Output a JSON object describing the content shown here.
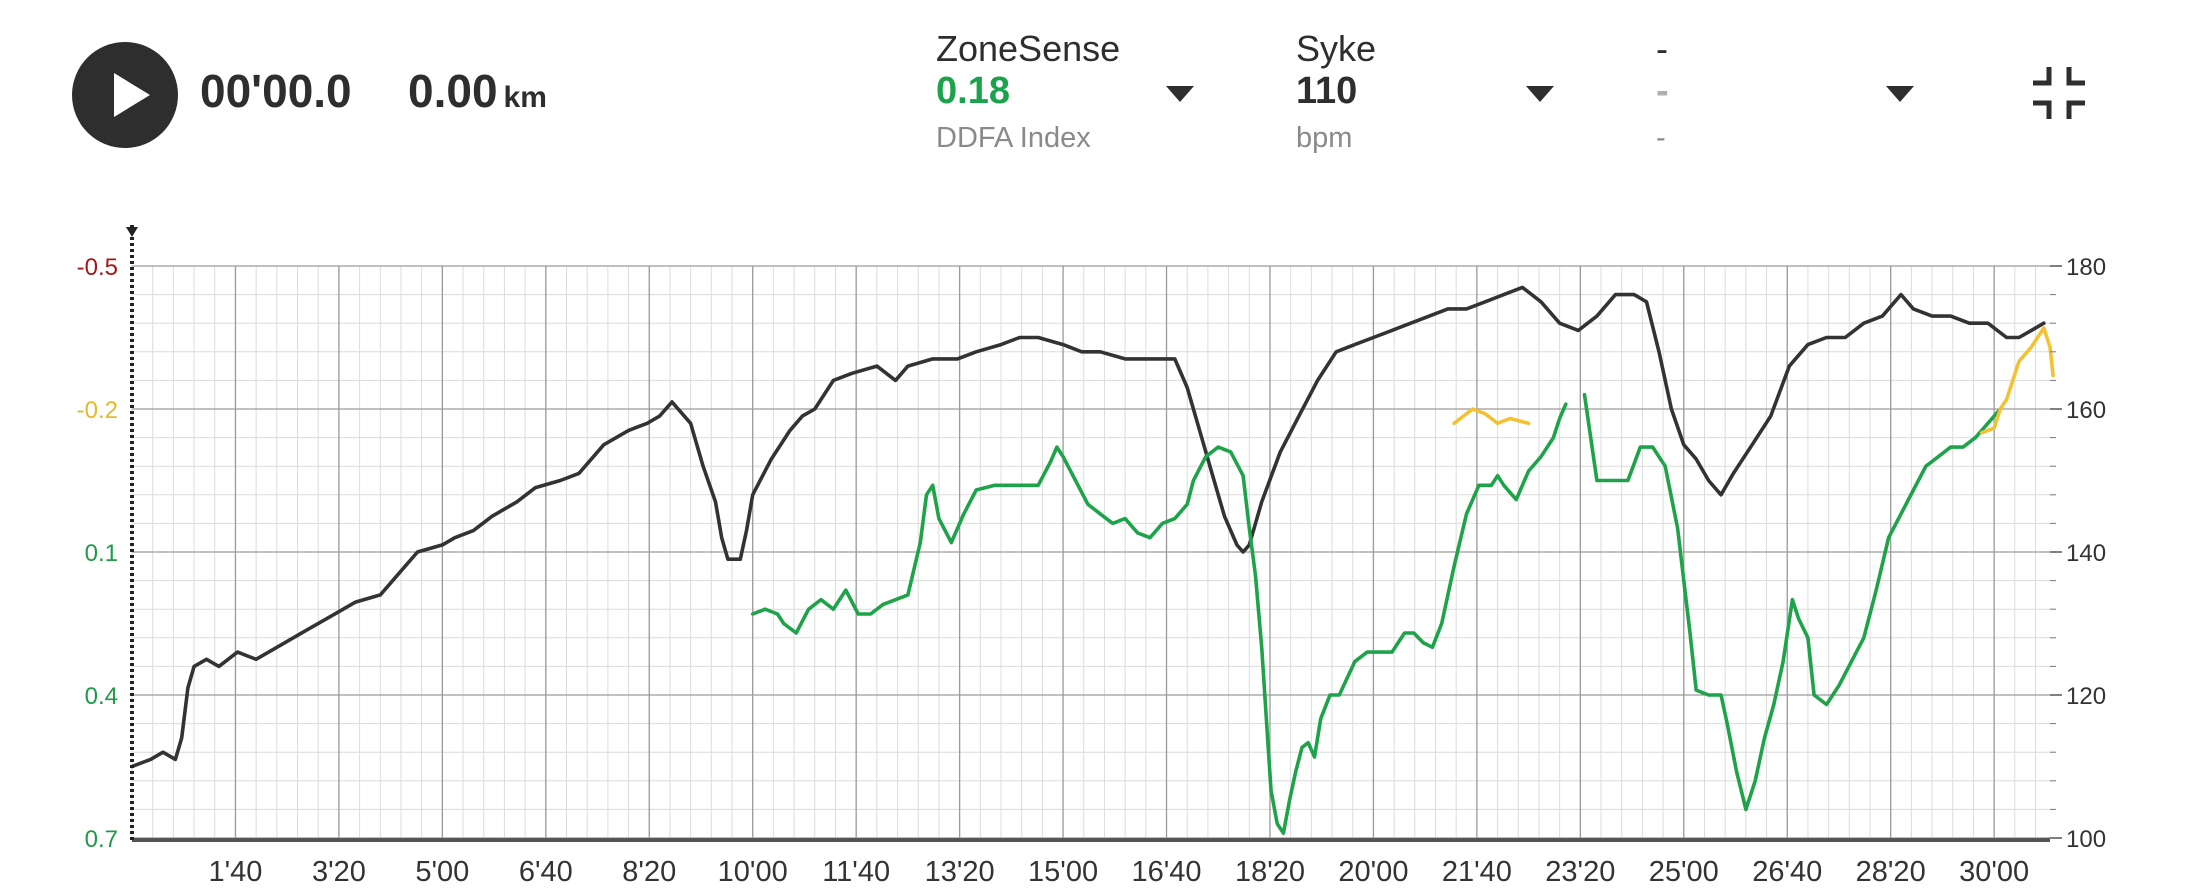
{
  "player": {
    "elapsed_time": "00'00.0",
    "distance_value": "0.00",
    "distance_unit": "km"
  },
  "metrics": [
    {
      "title": "ZoneSense",
      "value": "0.18",
      "subtitle": "DDFA Index",
      "value_color": "#1aa34a"
    },
    {
      "title": "Syke",
      "value": "110",
      "subtitle": "bpm",
      "value_color": "#2e2e2e"
    },
    {
      "title": "-",
      "value": "-",
      "subtitle": "-",
      "value_color": "#b0b0b0"
    }
  ],
  "icons": {
    "play": "play-icon",
    "dropdown": "chevron-down-icon",
    "fullscreen": "exit-fullscreen-icon"
  },
  "colors": {
    "heart_rate": "#333333",
    "ddfa_green": "#1fa34a",
    "ddfa_yellow": "#f2c234",
    "left_red": "#a31919",
    "left_yellow": "#e6b82e",
    "left_green": "#1e9a48",
    "grid_major": "#9a9a9a",
    "grid_minor": "#dcdcdc"
  },
  "chart_data": {
    "type": "line",
    "x_unit": "minutes",
    "x_range": [
      0,
      30.9
    ],
    "x_tick_labels": [
      "1'40",
      "3'20",
      "5'00",
      "6'40",
      "8'20",
      "10'00",
      "11'40",
      "13'20",
      "15'00",
      "16'40",
      "18'20",
      "20'00",
      "21'40",
      "23'20",
      "25'00",
      "26'40",
      "28'20",
      "30'00"
    ],
    "x_tick_values": [
      1.6667,
      3.3333,
      5,
      6.6667,
      8.3333,
      10,
      11.6667,
      13.3333,
      15,
      16.6667,
      18.3333,
      20,
      21.6667,
      23.3333,
      25,
      26.6667,
      28.3333,
      30
    ],
    "left_axis": {
      "ticks": [
        "-0.5",
        "-0.2",
        "0.1",
        "0.4",
        "0.7"
      ],
      "tick_colors": [
        "#a31919",
        "#e6b82e",
        "#1e9a48",
        "#1e9a48",
        "#1e9a48"
      ],
      "range": [
        -0.5,
        0.7
      ],
      "inverted": true
    },
    "right_axis": {
      "ticks": [
        "180",
        "160",
        "140",
        "120",
        "100"
      ],
      "range": [
        100,
        180
      ]
    },
    "grid": true,
    "series": [
      {
        "name": "Syke",
        "axis": "right",
        "points": [
          [
            0,
            110
          ],
          [
            0.3,
            111
          ],
          [
            0.5,
            112
          ],
          [
            0.7,
            111
          ],
          [
            0.8,
            114
          ],
          [
            0.9,
            121
          ],
          [
            1.0,
            124
          ],
          [
            1.2,
            125
          ],
          [
            1.4,
            124
          ],
          [
            1.7,
            126
          ],
          [
            2.0,
            125
          ],
          [
            2.4,
            127
          ],
          [
            2.8,
            129
          ],
          [
            3.2,
            131
          ],
          [
            3.6,
            133
          ],
          [
            4.0,
            134
          ],
          [
            4.3,
            137
          ],
          [
            4.6,
            140
          ],
          [
            5.0,
            141
          ],
          [
            5.2,
            142
          ],
          [
            5.5,
            143
          ],
          [
            5.8,
            145
          ],
          [
            6.2,
            147
          ],
          [
            6.5,
            149
          ],
          [
            6.9,
            150
          ],
          [
            7.2,
            151
          ],
          [
            7.6,
            155
          ],
          [
            8.0,
            157
          ],
          [
            8.3,
            158
          ],
          [
            8.5,
            159
          ],
          [
            8.7,
            161
          ],
          [
            9.0,
            158
          ],
          [
            9.2,
            152
          ],
          [
            9.4,
            147
          ],
          [
            9.5,
            142
          ],
          [
            9.6,
            139
          ],
          [
            9.8,
            139
          ],
          [
            9.9,
            143
          ],
          [
            10.0,
            148
          ],
          [
            10.3,
            153
          ],
          [
            10.6,
            157
          ],
          [
            10.8,
            159
          ],
          [
            11.0,
            160
          ],
          [
            11.3,
            164
          ],
          [
            11.6,
            165
          ],
          [
            12.0,
            166
          ],
          [
            12.3,
            164
          ],
          [
            12.5,
            166
          ],
          [
            12.9,
            167
          ],
          [
            13.3,
            167
          ],
          [
            13.6,
            168
          ],
          [
            14.0,
            169
          ],
          [
            14.3,
            170
          ],
          [
            14.6,
            170
          ],
          [
            15.0,
            169
          ],
          [
            15.3,
            168
          ],
          [
            15.6,
            168
          ],
          [
            16.0,
            167
          ],
          [
            16.4,
            167
          ],
          [
            16.8,
            167
          ],
          [
            17.0,
            163
          ],
          [
            17.2,
            157
          ],
          [
            17.4,
            151
          ],
          [
            17.6,
            145
          ],
          [
            17.8,
            141
          ],
          [
            17.9,
            140
          ],
          [
            18.0,
            141
          ],
          [
            18.2,
            147
          ],
          [
            18.5,
            154
          ],
          [
            18.8,
            159
          ],
          [
            19.1,
            164
          ],
          [
            19.4,
            168
          ],
          [
            19.7,
            169
          ],
          [
            20.0,
            170
          ],
          [
            20.3,
            171
          ],
          [
            20.6,
            172
          ],
          [
            20.9,
            173
          ],
          [
            21.2,
            174
          ],
          [
            21.5,
            174
          ],
          [
            21.8,
            175
          ],
          [
            22.1,
            176
          ],
          [
            22.4,
            177
          ],
          [
            22.7,
            175
          ],
          [
            23.0,
            172
          ],
          [
            23.3,
            171
          ],
          [
            23.6,
            173
          ],
          [
            23.9,
            176
          ],
          [
            24.2,
            176
          ],
          [
            24.4,
            175
          ],
          [
            24.6,
            168
          ],
          [
            24.8,
            160
          ],
          [
            25.0,
            155
          ],
          [
            25.2,
            153
          ],
          [
            25.4,
            150
          ],
          [
            25.6,
            148
          ],
          [
            25.8,
            151
          ],
          [
            26.1,
            155
          ],
          [
            26.4,
            159
          ],
          [
            26.7,
            166
          ],
          [
            27.0,
            169
          ],
          [
            27.3,
            170
          ],
          [
            27.6,
            170
          ],
          [
            27.9,
            172
          ],
          [
            28.2,
            173
          ],
          [
            28.5,
            176
          ],
          [
            28.7,
            174
          ],
          [
            29.0,
            173
          ],
          [
            29.3,
            173
          ],
          [
            29.6,
            172
          ],
          [
            29.9,
            172
          ],
          [
            30.2,
            170
          ],
          [
            30.4,
            170
          ],
          [
            30.6,
            171
          ],
          [
            30.8,
            172
          ]
        ]
      },
      {
        "name": "ZoneSense",
        "axis": "left",
        "points": [
          [
            10.0,
            0.23
          ],
          [
            10.2,
            0.22
          ],
          [
            10.4,
            0.23
          ],
          [
            10.5,
            0.25
          ],
          [
            10.7,
            0.27
          ],
          [
            10.9,
            0.22
          ],
          [
            11.1,
            0.2
          ],
          [
            11.3,
            0.22
          ],
          [
            11.5,
            0.18
          ],
          [
            11.7,
            0.23
          ],
          [
            11.9,
            0.23
          ],
          [
            12.1,
            0.21
          ],
          [
            12.3,
            0.2
          ],
          [
            12.5,
            0.19
          ],
          [
            12.7,
            0.08
          ],
          [
            12.8,
            -0.02
          ],
          [
            12.9,
            -0.04
          ],
          [
            13.0,
            0.03
          ],
          [
            13.2,
            0.08
          ],
          [
            13.4,
            0.02
          ],
          [
            13.6,
            -0.03
          ],
          [
            13.9,
            -0.04
          ],
          [
            14.2,
            -0.04
          ],
          [
            14.4,
            -0.04
          ],
          [
            14.6,
            -0.04
          ],
          [
            14.8,
            -0.09
          ],
          [
            14.9,
            -0.12
          ],
          [
            15.0,
            -0.1
          ],
          [
            15.2,
            -0.05
          ],
          [
            15.4,
            0.0
          ],
          [
            15.6,
            0.02
          ],
          [
            15.8,
            0.04
          ],
          [
            16.0,
            0.03
          ],
          [
            16.2,
            0.06
          ],
          [
            16.4,
            0.07
          ],
          [
            16.6,
            0.04
          ],
          [
            16.8,
            0.03
          ],
          [
            17.0,
            0.0
          ],
          [
            17.1,
            -0.05
          ],
          [
            17.3,
            -0.1
          ],
          [
            17.5,
            -0.12
          ],
          [
            17.7,
            -0.11
          ],
          [
            17.9,
            -0.06
          ],
          [
            18.0,
            0.05
          ],
          [
            18.1,
            0.15
          ],
          [
            18.2,
            0.3
          ],
          [
            18.35,
            0.6
          ],
          [
            18.45,
            0.67
          ],
          [
            18.55,
            0.69
          ],
          [
            18.65,
            0.62
          ],
          [
            18.75,
            0.56
          ],
          [
            18.85,
            0.51
          ],
          [
            18.95,
            0.5
          ],
          [
            19.05,
            0.53
          ],
          [
            19.15,
            0.45
          ],
          [
            19.3,
            0.4
          ],
          [
            19.45,
            0.4
          ],
          [
            19.7,
            0.33
          ],
          [
            19.9,
            0.31
          ],
          [
            20.1,
            0.31
          ],
          [
            20.3,
            0.31
          ],
          [
            20.5,
            0.27
          ],
          [
            20.65,
            0.27
          ],
          [
            20.8,
            0.29
          ],
          [
            20.95,
            0.3
          ],
          [
            21.1,
            0.25
          ],
          [
            21.3,
            0.13
          ],
          [
            21.5,
            0.02
          ],
          [
            21.7,
            -0.04
          ],
          [
            21.9,
            -0.04
          ],
          [
            22.0,
            -0.06
          ],
          [
            22.1,
            -0.04
          ],
          [
            22.3,
            -0.01
          ],
          [
            22.5,
            -0.07
          ],
          [
            22.7,
            -0.1
          ],
          [
            22.9,
            -0.14
          ],
          [
            23.0,
            -0.18
          ],
          [
            23.1,
            -0.21
          ]
        ]
      },
      {
        "name": "ZoneSense (second segment)",
        "axis": "left",
        "points": [
          [
            23.4,
            -0.23
          ],
          [
            23.6,
            -0.05
          ],
          [
            23.8,
            -0.05
          ],
          [
            24.1,
            -0.05
          ],
          [
            24.3,
            -0.12
          ],
          [
            24.5,
            -0.12
          ],
          [
            24.7,
            -0.08
          ],
          [
            24.9,
            0.05
          ],
          [
            25.1,
            0.27
          ],
          [
            25.2,
            0.39
          ],
          [
            25.4,
            0.4
          ],
          [
            25.6,
            0.4
          ],
          [
            25.7,
            0.46
          ],
          [
            25.85,
            0.56
          ],
          [
            26.0,
            0.64
          ],
          [
            26.15,
            0.58
          ],
          [
            26.3,
            0.49
          ],
          [
            26.45,
            0.42
          ],
          [
            26.6,
            0.33
          ],
          [
            26.75,
            0.2
          ],
          [
            26.85,
            0.24
          ],
          [
            27.0,
            0.28
          ],
          [
            27.1,
            0.4
          ],
          [
            27.3,
            0.42
          ],
          [
            27.5,
            0.38
          ],
          [
            27.7,
            0.33
          ],
          [
            27.9,
            0.28
          ],
          [
            28.1,
            0.18
          ],
          [
            28.3,
            0.07
          ],
          [
            28.5,
            0.02
          ],
          [
            28.7,
            -0.03
          ],
          [
            28.9,
            -0.08
          ],
          [
            29.1,
            -0.1
          ],
          [
            29.3,
            -0.12
          ],
          [
            29.5,
            -0.12
          ],
          [
            29.7,
            -0.14
          ],
          [
            29.9,
            -0.17
          ],
          [
            30.1,
            -0.2
          ]
        ]
      },
      {
        "name": "ZoneSense high (yellow)",
        "axis": "left",
        "points": [
          [
            21.3,
            -0.17
          ],
          [
            21.6,
            -0.2
          ],
          [
            21.8,
            -0.19
          ],
          [
            22.0,
            -0.17
          ],
          [
            22.2,
            -0.18
          ],
          [
            22.5,
            -0.17
          ]
        ]
      },
      {
        "name": "ZoneSense high (yellow) end",
        "axis": "left",
        "points": [
          [
            29.8,
            -0.15
          ],
          [
            30.0,
            -0.16
          ],
          [
            30.1,
            -0.2
          ],
          [
            30.2,
            -0.22
          ],
          [
            30.4,
            -0.3
          ],
          [
            30.6,
            -0.33
          ],
          [
            30.8,
            -0.37
          ],
          [
            30.9,
            -0.33
          ],
          [
            30.95,
            -0.27
          ]
        ]
      }
    ]
  }
}
